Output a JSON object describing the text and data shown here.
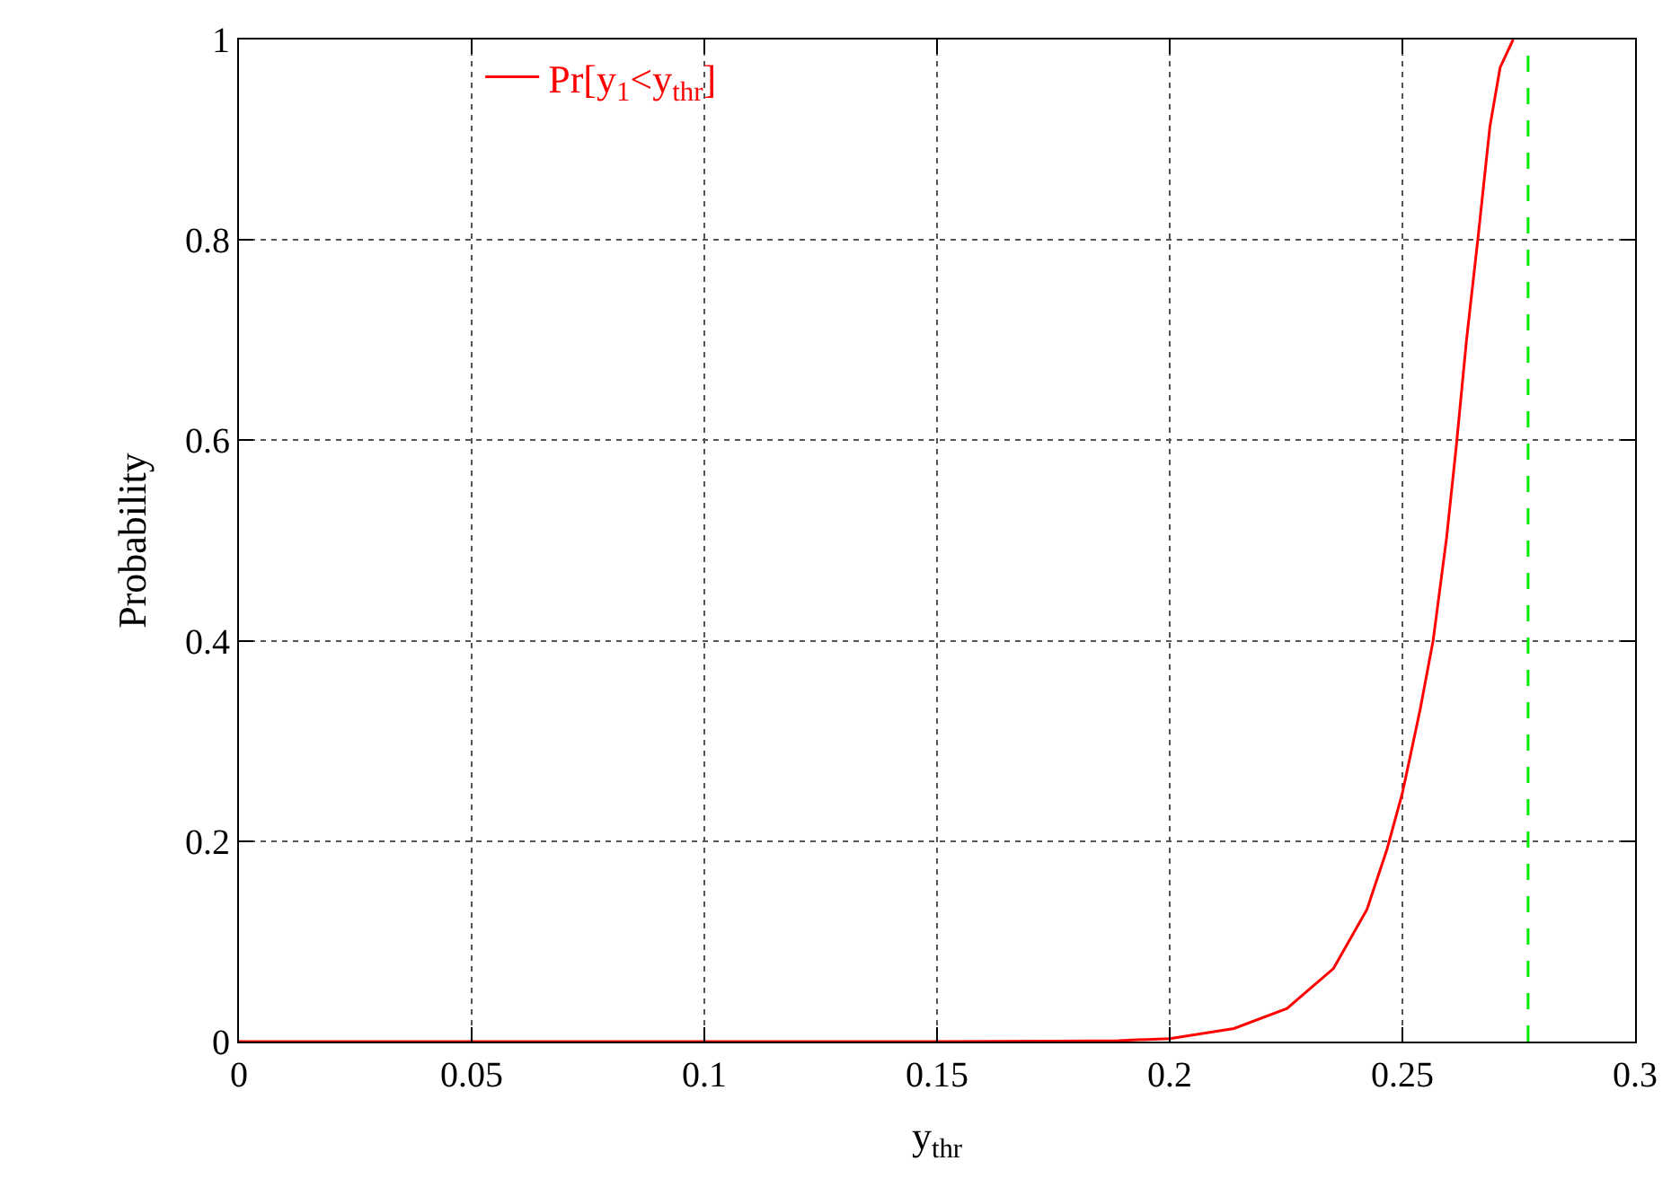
{
  "chart_data": {
    "type": "line",
    "xlabel": "y$_{thr}$",
    "ylabel": "Probability",
    "x": [
      0,
      0.1,
      0.15,
      0.175,
      0.189,
      0.2,
      0.2138,
      0.2252,
      0.2352,
      0.2424,
      0.2467,
      0.25,
      0.2538,
      0.2566,
      0.2595,
      0.2616,
      0.2638,
      0.2662,
      0.2688,
      0.271,
      0.2738
    ],
    "series": [
      {
        "name": "Pr[y$_{1}$<y$_{thr}$]",
        "color": "#ff0000",
        "values": [
          0,
          0,
          0,
          0.0005,
          0.001,
          0.003,
          0.013,
          0.033,
          0.073,
          0.132,
          0.192,
          0.248,
          0.331,
          0.4,
          0.503,
          0.595,
          0.701,
          0.8,
          0.913,
          0.972,
          1.0
        ]
      }
    ],
    "xlim": [
      0,
      0.3
    ],
    "xticks": [
      0,
      0.05,
      0.1,
      0.15,
      0.2,
      0.25,
      0.3
    ],
    "ylim": [
      0,
      1
    ],
    "yticks": [
      0,
      0.2,
      0.4,
      0.6,
      0.8,
      1
    ],
    "ref_lines": [
      {
        "axis": "x",
        "value": 0.277,
        "color": "#00ee00",
        "line_style": "dashed"
      }
    ],
    "grid": true,
    "legend": "top left",
    "marker": "none",
    "line_style": "solid"
  }
}
